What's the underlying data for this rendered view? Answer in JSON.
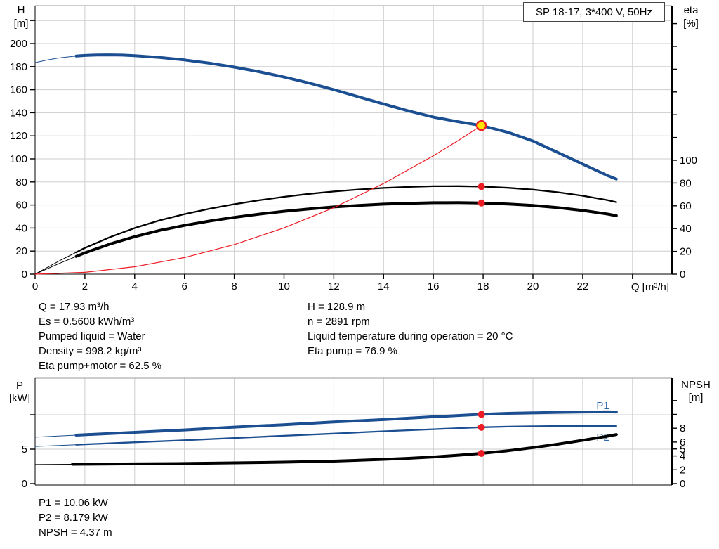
{
  "title_box": {
    "label": "SP 18-17, 3*400 V, 50Hz"
  },
  "info_blocks": {
    "left": [
      "Q = 17.93 m³/h",
      "Es = 0.5608 kWh/m³",
      "Pumped liquid = Water",
      "Density = 998.2 kg/m³",
      "Eta pump+motor = 62.5 %"
    ],
    "right": [
      "H = 128.9 m",
      "n = 2891 rpm",
      "Liquid temperature during operation = 20 °C",
      "Eta pump = 76.9 %"
    ],
    "bottom": [
      "P1 = 10.06 kW",
      "P2 = 8.179 kW",
      "NPSH = 4.37 m"
    ]
  },
  "colors": {
    "curve_blue": "#1b4f91",
    "label_blue": "#2b66ab",
    "red": "#ec1c24",
    "marker_yellow": "#ffe400",
    "grid": "#cdcdcd",
    "axis": "#000000",
    "border_gray": "#999999"
  },
  "chart_data": [
    {
      "type": "line",
      "title": "SP 18-17, 3*400 V, 50Hz",
      "xlabel": "Q [m³/h]",
      "grid": true,
      "xlim": [
        0,
        25.6
      ],
      "axes": {
        "left": {
          "label": [
            "H",
            "[m]"
          ],
          "range": [
            0,
            233
          ],
          "ticks": [
            {
              "v": 0,
              "l": "0"
            },
            {
              "v": 20,
              "l": "20"
            },
            {
              "v": 40,
              "l": "40"
            },
            {
              "v": 60,
              "l": "60"
            },
            {
              "v": 80,
              "l": "80"
            },
            {
              "v": 100,
              "l": "100"
            },
            {
              "v": 120,
              "l": "120"
            },
            {
              "v": 140,
              "l": "140"
            },
            {
              "v": 160,
              "l": "160"
            },
            {
              "v": 180,
              "l": "180"
            },
            {
              "v": 200,
              "l": "200"
            },
            {
              "v": 220,
              "l": ""
            }
          ]
        },
        "right": {
          "label": [
            "eta",
            "[%]"
          ],
          "range": [
            0,
            236
          ],
          "ticks": [
            {
              "v": 0,
              "l": "0"
            },
            {
              "v": 20,
              "l": "20"
            },
            {
              "v": 40,
              "l": "40"
            },
            {
              "v": 60,
              "l": "60"
            },
            {
              "v": 80,
              "l": "80"
            },
            {
              "v": 100,
              "l": "100"
            },
            {
              "v": 120,
              "l": ""
            },
            {
              "v": 140,
              "l": ""
            },
            {
              "v": 160,
              "l": ""
            },
            {
              "v": 180,
              "l": ""
            },
            {
              "v": 200,
              "l": ""
            },
            {
              "v": 220,
              "l": ""
            }
          ]
        },
        "x": {
          "ticks": [
            {
              "v": 0,
              "l": "0"
            },
            {
              "v": 2,
              "l": "2"
            },
            {
              "v": 4,
              "l": "4"
            },
            {
              "v": 6,
              "l": "6"
            },
            {
              "v": 8,
              "l": "8"
            },
            {
              "v": 10,
              "l": "10"
            },
            {
              "v": 12,
              "l": "12"
            },
            {
              "v": 14,
              "l": "14"
            },
            {
              "v": 16,
              "l": "16"
            },
            {
              "v": 18,
              "l": "18"
            },
            {
              "v": 20,
              "l": "20"
            },
            {
              "v": 22,
              "l": "22"
            },
            {
              "v": 24,
              "l": ""
            }
          ]
        }
      },
      "series": [
        {
          "name": "head-curve",
          "axis": "left",
          "color": "#1b4f91",
          "width": 4,
          "thin_until": 1.65,
          "points": [
            [
              0,
              183.5
            ],
            [
              0.5,
              185.8
            ],
            [
              1,
              187.6
            ],
            [
              1.65,
              189.2
            ],
            [
              2,
              189.7
            ],
            [
              2.5,
              190.1
            ],
            [
              3,
              190.2
            ],
            [
              3.5,
              190
            ],
            [
              4,
              189.5
            ],
            [
              5,
              188
            ],
            [
              6,
              185.8
            ],
            [
              7,
              183
            ],
            [
              8,
              179.6
            ],
            [
              9,
              175.6
            ],
            [
              10,
              171
            ],
            [
              11,
              165.8
            ],
            [
              12,
              160
            ],
            [
              13,
              153.8
            ],
            [
              14,
              147.6
            ],
            [
              15,
              141.6
            ],
            [
              16,
              136.2
            ],
            [
              17,
              132.2
            ],
            [
              17.93,
              128.9
            ],
            [
              19,
              123
            ],
            [
              20,
              115.5
            ],
            [
              21,
              105.5
            ],
            [
              22,
              95.5
            ],
            [
              23,
              85.5
            ],
            [
              23.35,
              82.5
            ]
          ]
        },
        {
          "name": "eta-pump-curve",
          "axis": "right",
          "color": "#000000",
          "width": 2.3,
          "thin_until": 1.65,
          "points": [
            [
              0,
              0
            ],
            [
              1,
              12
            ],
            [
              2,
              23
            ],
            [
              3,
              32.5
            ],
            [
              4,
              40.5
            ],
            [
              5,
              47.2
            ],
            [
              6,
              52.7
            ],
            [
              7,
              57.4
            ],
            [
              8,
              61.4
            ],
            [
              9,
              64.9
            ],
            [
              10,
              67.9
            ],
            [
              11,
              70.5
            ],
            [
              12,
              72.6
            ],
            [
              13,
              74.3
            ],
            [
              14,
              75.7
            ],
            [
              15,
              76.6
            ],
            [
              16,
              77.2
            ],
            [
              17,
              77.3
            ],
            [
              17.93,
              76.9
            ],
            [
              19,
              75.8
            ],
            [
              20,
              74.2
            ],
            [
              21,
              71.9
            ],
            [
              22,
              68.8
            ],
            [
              23,
              65
            ],
            [
              23.35,
              63.2
            ]
          ]
        },
        {
          "name": "eta-pump-motor-curve",
          "axis": "right",
          "color": "#000000",
          "width": 4,
          "thin_until": 1.65,
          "points": [
            [
              0,
              0
            ],
            [
              1,
              9.7
            ],
            [
              2,
              18.7
            ],
            [
              3,
              26.4
            ],
            [
              4,
              32.9
            ],
            [
              5,
              38.4
            ],
            [
              6,
              42.8
            ],
            [
              7,
              46.6
            ],
            [
              8,
              49.9
            ],
            [
              9,
              52.7
            ],
            [
              10,
              55.2
            ],
            [
              11,
              57.3
            ],
            [
              12,
              59
            ],
            [
              13,
              60.4
            ],
            [
              14,
              61.5
            ],
            [
              15,
              62.2
            ],
            [
              16,
              62.7
            ],
            [
              17,
              62.8
            ],
            [
              17.93,
              62.5
            ],
            [
              19,
              61.6
            ],
            [
              20,
              60.3
            ],
            [
              21,
              58.4
            ],
            [
              22,
              55.9
            ],
            [
              23,
              52.8
            ],
            [
              23.35,
              51.3
            ]
          ]
        },
        {
          "name": "system-curve",
          "axis": "left",
          "color": "#ec1c24",
          "width": 1.2,
          "points": [
            [
              0,
              0
            ],
            [
              2,
              1.6
            ],
            [
              4,
              6.4
            ],
            [
              6,
              14.4
            ],
            [
              8,
              25.7
            ],
            [
              10,
              40.1
            ],
            [
              12,
              57.7
            ],
            [
              14,
              78.6
            ],
            [
              16,
              102.7
            ],
            [
              17,
              115.9
            ],
            [
              17.93,
              128.9
            ]
          ]
        }
      ],
      "markers": [
        {
          "name": "duty-point-marker",
          "axis": "left",
          "q": 17.93,
          "v": 128.9,
          "style": "duty"
        },
        {
          "name": "eta-pump-point",
          "axis": "right",
          "q": 17.93,
          "v": 76.9,
          "style": "dot"
        },
        {
          "name": "eta-pump-motor-point",
          "axis": "right",
          "q": 17.93,
          "v": 62.5,
          "style": "dot"
        }
      ]
    },
    {
      "type": "line",
      "xlabel": "",
      "grid": true,
      "xlim": [
        0,
        25.6
      ],
      "axes": {
        "left": {
          "label": [
            "P",
            "[kW]"
          ],
          "range": [
            0,
            15.3
          ],
          "ticks": [
            {
              "v": 0,
              "l": "0"
            },
            {
              "v": 5,
              "l": "5"
            },
            {
              "v": 10,
              "l": ""
            }
          ]
        },
        "right": {
          "label": [
            "NPSH",
            "[m]"
          ],
          "range": [
            0,
            15.2
          ],
          "ticks": [
            {
              "v": 0,
              "l": "0"
            },
            {
              "v": 2,
              "l": "2"
            },
            {
              "v": 4,
              "l": "4"
            },
            {
              "v": 5,
              "l": "5"
            },
            {
              "v": 6,
              "l": "6"
            },
            {
              "v": 8,
              "l": "8"
            },
            {
              "v": 10,
              "l": ""
            },
            {
              "v": 12,
              "l": ""
            }
          ]
        },
        "x": {
          "ticks": [
            {
              "v": 2,
              "l": ""
            },
            {
              "v": 4,
              "l": ""
            },
            {
              "v": 6,
              "l": ""
            },
            {
              "v": 8,
              "l": ""
            },
            {
              "v": 10,
              "l": ""
            },
            {
              "v": 12,
              "l": ""
            },
            {
              "v": 14,
              "l": ""
            },
            {
              "v": 16,
              "l": ""
            },
            {
              "v": 18,
              "l": ""
            },
            {
              "v": 20,
              "l": ""
            },
            {
              "v": 22,
              "l": ""
            },
            {
              "v": 24,
              "l": ""
            }
          ]
        }
      },
      "series": [
        {
          "name": "p1-curve",
          "axis": "left",
          "color": "#1b4f91",
          "width": 4,
          "thin_until": 1.65,
          "label": {
            "text": "P1",
            "q": 22.55,
            "v": 11.35
          },
          "points": [
            [
              0,
              6.75
            ],
            [
              2,
              7.1
            ],
            [
              4,
              7.45
            ],
            [
              6,
              7.8
            ],
            [
              8,
              8.2
            ],
            [
              10,
              8.55
            ],
            [
              12,
              8.95
            ],
            [
              14,
              9.3
            ],
            [
              16,
              9.7
            ],
            [
              17.93,
              10.06
            ],
            [
              19,
              10.2
            ],
            [
              20,
              10.28
            ],
            [
              21,
              10.35
            ],
            [
              22,
              10.4
            ],
            [
              23,
              10.42
            ],
            [
              23.35,
              10.4
            ]
          ]
        },
        {
          "name": "p2-curve",
          "axis": "left",
          "color": "#1b4f91",
          "width": 2.3,
          "thin_until": 1.65,
          "label": {
            "text": "P2",
            "q": 22.55,
            "v": 6.72
          },
          "points": [
            [
              0,
              5.4
            ],
            [
              2,
              5.7
            ],
            [
              4,
              6
            ],
            [
              6,
              6.3
            ],
            [
              8,
              6.62
            ],
            [
              10,
              6.95
            ],
            [
              12,
              7.27
            ],
            [
              14,
              7.6
            ],
            [
              16,
              7.9
            ],
            [
              17.93,
              8.179
            ],
            [
              19,
              8.28
            ],
            [
              20,
              8.33
            ],
            [
              21,
              8.37
            ],
            [
              22,
              8.39
            ],
            [
              23,
              8.38
            ],
            [
              23.35,
              8.35
            ]
          ]
        },
        {
          "name": "npsh-curve",
          "axis": "right",
          "color": "#000000",
          "width": 4,
          "thin_until": 1.5,
          "points": [
            [
              0,
              2.75
            ],
            [
              2,
              2.8
            ],
            [
              4,
              2.85
            ],
            [
              6,
              2.9
            ],
            [
              8,
              3
            ],
            [
              10,
              3.1
            ],
            [
              12,
              3.25
            ],
            [
              14,
              3.5
            ],
            [
              15,
              3.65
            ],
            [
              16,
              3.85
            ],
            [
              17,
              4.1
            ],
            [
              17.93,
              4.37
            ],
            [
              19,
              4.75
            ],
            [
              20,
              5.2
            ],
            [
              21,
              5.7
            ],
            [
              22,
              6.25
            ],
            [
              23,
              6.85
            ],
            [
              23.35,
              7.1
            ]
          ]
        }
      ],
      "markers": [
        {
          "name": "p1-point",
          "axis": "left",
          "q": 17.93,
          "v": 10.06,
          "style": "dot"
        },
        {
          "name": "p2-point",
          "axis": "left",
          "q": 17.93,
          "v": 8.179,
          "style": "dot"
        },
        {
          "name": "npsh-point",
          "axis": "right",
          "q": 17.93,
          "v": 4.37,
          "style": "dot"
        }
      ]
    }
  ]
}
